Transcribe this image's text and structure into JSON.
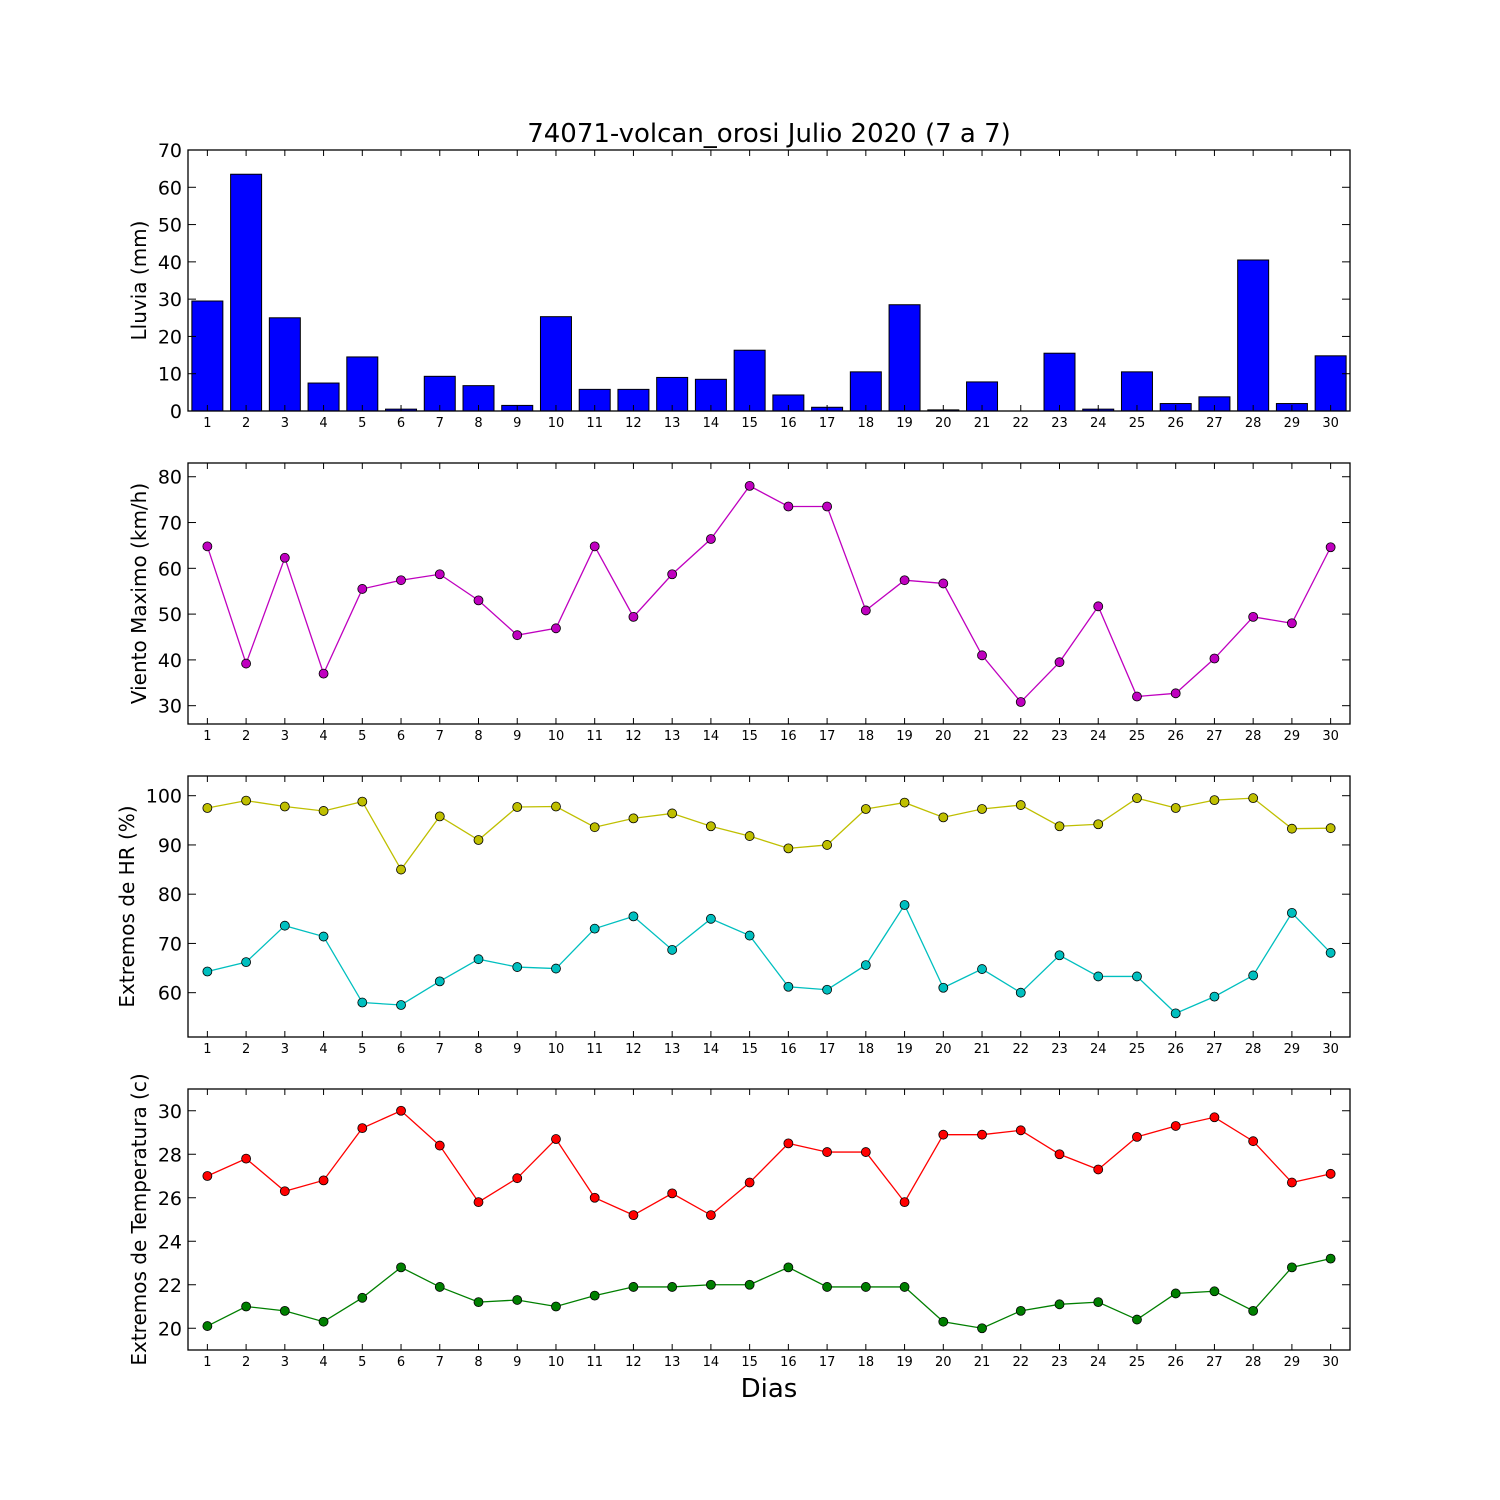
{
  "figure": {
    "title": "74071-volcan_orosi Julio 2020  (7 a 7)",
    "xlabel": "Dias"
  },
  "chart_data": [
    {
      "type": "bar",
      "title": "74071-volcan_orosi Julio 2020  (7 a 7)",
      "xlabel": "",
      "ylabel": "Lluvia (mm)",
      "categories": [
        "1",
        "2",
        "3",
        "4",
        "5",
        "6",
        "7",
        "8",
        "9",
        "10",
        "11",
        "12",
        "13",
        "14",
        "15",
        "16",
        "17",
        "18",
        "19",
        "20",
        "21",
        "22",
        "23",
        "24",
        "25",
        "26",
        "27",
        "28",
        "29",
        "30"
      ],
      "ylim": [
        0,
        70
      ],
      "yticks": [
        0,
        10,
        20,
        30,
        40,
        50,
        60,
        70
      ],
      "series": [
        {
          "values": [
            29.5,
            63.5,
            25.0,
            7.5,
            14.5,
            0.5,
            9.3,
            6.8,
            1.5,
            25.3,
            5.8,
            5.8,
            9.0,
            8.5,
            16.3,
            4.3,
            1.0,
            10.5,
            28.5,
            0.3,
            7.8,
            0.0,
            15.5,
            0.5,
            10.5,
            2.0,
            3.8,
            40.5,
            2.0,
            14.8
          ],
          "color": "#0000ff"
        }
      ],
      "grid": false
    },
    {
      "type": "line",
      "ylabel": "Viento Maximo (km/h)",
      "categories": [
        "1",
        "2",
        "3",
        "4",
        "5",
        "6",
        "7",
        "8",
        "9",
        "10",
        "11",
        "12",
        "13",
        "14",
        "15",
        "16",
        "17",
        "18",
        "19",
        "20",
        "21",
        "22",
        "23",
        "24",
        "25",
        "26",
        "27",
        "28",
        "29",
        "30"
      ],
      "ylim": [
        26,
        83
      ],
      "yticks": [
        30,
        40,
        50,
        60,
        70,
        80
      ],
      "series": [
        {
          "values": [
            64.8,
            39.2,
            62.3,
            37.0,
            55.5,
            57.4,
            58.7,
            53.0,
            45.4,
            46.9,
            64.8,
            49.4,
            58.7,
            66.4,
            78.0,
            73.5,
            73.5,
            50.8,
            57.4,
            56.7,
            41.0,
            30.8,
            39.5,
            51.7,
            32.0,
            32.7,
            40.3,
            49.4,
            48.0,
            64.6
          ],
          "color": "#bf00bf"
        }
      ],
      "grid": false
    },
    {
      "type": "line",
      "ylabel": "Extremos de HR (%)",
      "categories": [
        "1",
        "2",
        "3",
        "4",
        "5",
        "6",
        "7",
        "8",
        "9",
        "10",
        "11",
        "12",
        "13",
        "14",
        "15",
        "16",
        "17",
        "18",
        "19",
        "20",
        "21",
        "22",
        "23",
        "24",
        "25",
        "26",
        "27",
        "28",
        "29",
        "30"
      ],
      "ylim": [
        51,
        104
      ],
      "yticks": [
        60,
        70,
        80,
        90,
        100
      ],
      "series": [
        {
          "values": [
            97.5,
            99.0,
            97.8,
            96.9,
            98.8,
            85.0,
            95.8,
            91.0,
            97.7,
            97.8,
            93.6,
            95.4,
            96.4,
            93.8,
            91.8,
            89.3,
            90.0,
            97.3,
            98.6,
            95.6,
            97.3,
            98.1,
            93.8,
            94.2,
            99.5,
            97.5,
            99.1,
            99.5,
            93.3,
            93.4
          ],
          "color": "#bfbf00"
        },
        {
          "values": [
            64.3,
            66.2,
            73.6,
            71.4,
            58.0,
            57.5,
            62.3,
            66.8,
            65.2,
            64.9,
            73.0,
            75.5,
            68.7,
            75.0,
            71.6,
            61.2,
            60.6,
            65.6,
            77.8,
            61.0,
            64.8,
            60.0,
            67.6,
            63.3,
            63.3,
            55.8,
            59.2,
            63.5,
            76.2,
            68.1
          ],
          "color": "#00bfbf"
        }
      ],
      "grid": false
    },
    {
      "type": "line",
      "xlabel": "Dias",
      "ylabel": "Extremos de Temperatura (c)",
      "categories": [
        "1",
        "2",
        "3",
        "4",
        "5",
        "6",
        "7",
        "8",
        "9",
        "10",
        "11",
        "12",
        "13",
        "14",
        "15",
        "16",
        "17",
        "18",
        "19",
        "20",
        "21",
        "22",
        "23",
        "24",
        "25",
        "26",
        "27",
        "28",
        "29",
        "30"
      ],
      "ylim": [
        19,
        31
      ],
      "yticks": [
        20,
        22,
        24,
        26,
        28,
        30
      ],
      "series": [
        {
          "values": [
            27.0,
            27.8,
            26.3,
            26.8,
            29.2,
            30.0,
            28.4,
            25.8,
            26.9,
            28.7,
            26.0,
            25.2,
            26.2,
            25.2,
            26.7,
            28.5,
            28.1,
            28.1,
            25.8,
            28.9,
            28.9,
            29.1,
            28.0,
            27.3,
            28.8,
            29.3,
            29.7,
            28.6,
            26.7,
            27.1
          ],
          "color": "#ff0000"
        },
        {
          "values": [
            20.1,
            21.0,
            20.8,
            20.3,
            21.4,
            22.8,
            21.9,
            21.2,
            21.3,
            21.0,
            21.5,
            21.9,
            21.9,
            22.0,
            22.0,
            22.8,
            21.9,
            21.9,
            21.9,
            20.3,
            20.0,
            20.8,
            21.1,
            21.2,
            20.4,
            21.6,
            21.7,
            20.8,
            22.8,
            23.2
          ],
          "color": "#007f00"
        }
      ],
      "grid": false
    }
  ]
}
